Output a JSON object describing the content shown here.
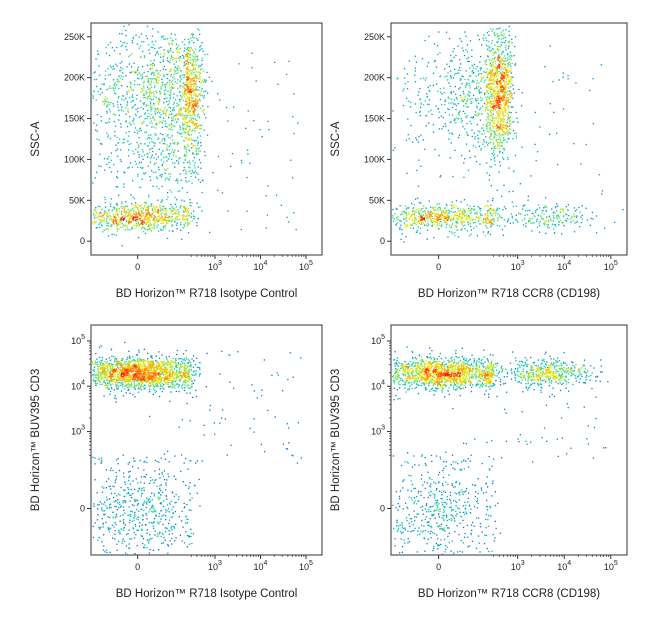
{
  "colors": {
    "density_low": "#1a1aff",
    "density_mid": "#00e0a0",
    "density_high_mid": "#ffee00",
    "density_high": "#ff1a00",
    "frame": "#333333",
    "background": "#ffffff"
  },
  "chart_data": [
    {
      "type": "scatter",
      "subtype": "flow-cytometry-density-dot-plot",
      "xlabel": "BD Horizon™ R718 Isotype Control",
      "ylabel": "SSC-A",
      "x_scale": "biexponential",
      "y_scale": "linear",
      "x_ticks": [
        {
          "value": 0,
          "label": "0"
        },
        {
          "value": 1000,
          "label": "10",
          "sup": "3"
        },
        {
          "value": 10000,
          "label": "10",
          "sup": "4"
        },
        {
          "value": 100000,
          "label": "10",
          "sup": "5"
        }
      ],
      "y_ticks": [
        {
          "value": 0,
          "label": "0"
        },
        {
          "value": 50000,
          "label": "50K"
        },
        {
          "value": 100000,
          "label": "100K"
        },
        {
          "value": 150000,
          "label": "150K"
        },
        {
          "value": 200000,
          "label": "200K"
        },
        {
          "value": 250000,
          "label": "250K"
        }
      ],
      "ylim": [
        -12000,
        262000
      ],
      "populations": [
        {
          "name": "lymphocytes",
          "x_center": 0,
          "y_center": 30000,
          "x_spread": 140,
          "y_spread": 9000,
          "relative_size": 0.3
        },
        {
          "name": "myeloid",
          "x_center": 150,
          "y_center": 185000,
          "x_spread": 180,
          "y_spread": 38000,
          "relative_size": 0.55
        },
        {
          "name": "stem",
          "x_center": 100,
          "y_center": 100000,
          "x_spread": 160,
          "y_spread": 30000,
          "relative_size": 0.12
        }
      ]
    },
    {
      "type": "scatter",
      "subtype": "flow-cytometry-density-dot-plot",
      "xlabel": "BD Horizon™ R718 CCR8 (CD198)",
      "ylabel": "SSC-A",
      "x_scale": "biexponential",
      "y_scale": "linear",
      "x_ticks": [
        {
          "value": 0,
          "label": "0"
        },
        {
          "value": 1000,
          "label": "10",
          "sup": "3"
        },
        {
          "value": 10000,
          "label": "10",
          "sup": "4"
        },
        {
          "value": 100000,
          "label": "10",
          "sup": "5"
        }
      ],
      "y_ticks": [
        {
          "value": 0,
          "label": "0"
        },
        {
          "value": 50000,
          "label": "50K"
        },
        {
          "value": 100000,
          "label": "100K"
        },
        {
          "value": 150000,
          "label": "150K"
        },
        {
          "value": 200000,
          "label": "200K"
        },
        {
          "value": 250000,
          "label": "250K"
        }
      ],
      "ylim": [
        -12000,
        262000
      ],
      "populations": [
        {
          "name": "lymphocytes",
          "x_center": 0,
          "y_center": 30000,
          "x_spread": 140,
          "y_spread": 9000,
          "relative_size": 0.25
        },
        {
          "name": "ccr8-positive",
          "x_center": 4000,
          "y_center": 30000,
          "x_spread_log": 0.55,
          "y_spread": 8000,
          "relative_size": 0.08
        },
        {
          "name": "myeloid",
          "x_center": 300,
          "y_center": 180000,
          "x_spread": 220,
          "y_spread": 38000,
          "relative_size": 0.55
        }
      ]
    },
    {
      "type": "scatter",
      "subtype": "flow-cytometry-density-dot-plot",
      "xlabel": "BD Horizon™ R718 Isotype Control",
      "ylabel": "BD Horizon™ BUV395 CD3",
      "x_scale": "biexponential",
      "y_scale": "biexponential",
      "x_ticks": [
        {
          "value": 0,
          "label": "0"
        },
        {
          "value": 1000,
          "label": "10",
          "sup": "3"
        },
        {
          "value": 10000,
          "label": "10",
          "sup": "4"
        },
        {
          "value": 100000,
          "label": "10",
          "sup": "5"
        }
      ],
      "y_ticks": [
        {
          "value": 0,
          "label": "0"
        },
        {
          "value": 1000,
          "label": "10",
          "sup": "3"
        },
        {
          "value": 10000,
          "label": "10",
          "sup": "4"
        },
        {
          "value": 100000,
          "label": "10",
          "sup": "5"
        }
      ],
      "populations": [
        {
          "name": "cd3-positive",
          "x_center": 0,
          "y_center": 20000,
          "x_spread": 140,
          "y_spread_log": 0.18,
          "relative_size": 0.7
        },
        {
          "name": "cd3-negative",
          "x_center": 0,
          "y_center": 0,
          "x_spread": 140,
          "y_spread": 120,
          "relative_size": 0.25
        }
      ]
    },
    {
      "type": "scatter",
      "subtype": "flow-cytometry-density-dot-plot",
      "xlabel": "BD Horizon™ R718 CCR8 (CD198)",
      "ylabel": "BD Horizon™ BUV395 CD3",
      "x_scale": "biexponential",
      "y_scale": "biexponential",
      "x_ticks": [
        {
          "value": 0,
          "label": "0"
        },
        {
          "value": 1000,
          "label": "10",
          "sup": "3"
        },
        {
          "value": 10000,
          "label": "10",
          "sup": "4"
        },
        {
          "value": 100000,
          "label": "10",
          "sup": "5"
        }
      ],
      "y_ticks": [
        {
          "value": 0,
          "label": "0"
        },
        {
          "value": 1000,
          "label": "10",
          "sup": "3"
        },
        {
          "value": 10000,
          "label": "10",
          "sup": "4"
        },
        {
          "value": 100000,
          "label": "10",
          "sup": "5"
        }
      ],
      "populations": [
        {
          "name": "cd3-positive-ccr8-negative",
          "x_center": 0,
          "y_center": 20000,
          "x_spread": 140,
          "y_spread_log": 0.18,
          "relative_size": 0.55
        },
        {
          "name": "cd3-positive-ccr8-positive",
          "x_center": 4000,
          "y_center": 20000,
          "x_spread_log": 0.5,
          "y_spread_log": 0.15,
          "relative_size": 0.18
        },
        {
          "name": "cd3-negative",
          "x_center": 0,
          "y_center": 0,
          "x_spread": 140,
          "y_spread": 120,
          "relative_size": 0.22
        }
      ]
    }
  ]
}
